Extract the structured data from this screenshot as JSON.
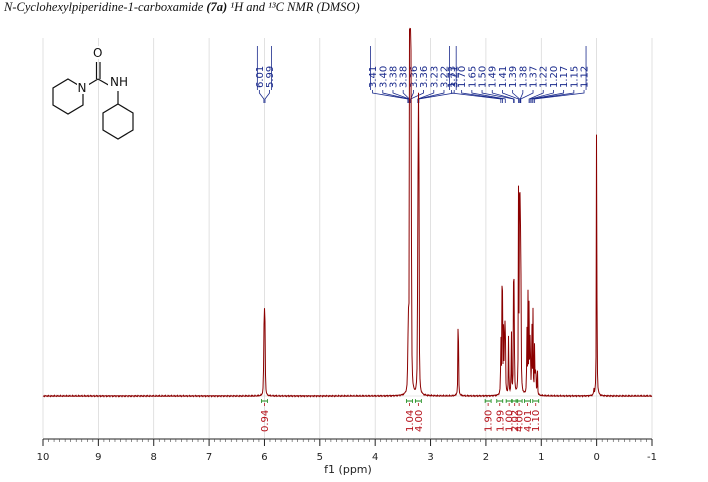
{
  "title": {
    "compound": "N-Cyclohexylpiperidine-1-carboxamide",
    "label": "(7a)",
    "nuclei": "¹H and ¹³C NMR (DMSO)"
  },
  "structure": {
    "atom_O": "O",
    "atom_N": "N",
    "atom_NH": "NH"
  },
  "chart_data": {
    "type": "line",
    "title": "N-Cyclohexylpiperidine-1-carboxamide (7a) ¹H and ¹³C NMR (DMSO)",
    "xlabel": "f1 (ppm)",
    "ylabel": "",
    "xlim": [
      10,
      -1
    ],
    "x_reversed": true,
    "grid": true,
    "x_ticks": [
      10,
      9,
      8,
      7,
      6,
      5,
      4,
      3,
      2,
      1,
      0,
      -1
    ],
    "x_tick_labels": [
      "10",
      "9",
      "8",
      "7",
      "6",
      "5",
      "4",
      "3",
      "2",
      "1",
      "0",
      "-1"
    ],
    "peak_groups": [
      {
        "labels": [
          "6.01",
          "5.99"
        ],
        "values": [
          6.01,
          5.99
        ]
      },
      {
        "labels": [
          "3.41",
          "3.40",
          "3.38",
          "3.38",
          "3.36",
          "3.36",
          "3.23",
          "3.22",
          "3.21"
        ],
        "values": [
          3.41,
          3.4,
          3.38,
          3.38,
          3.36,
          3.36,
          3.23,
          3.22,
          3.21
        ]
      },
      {
        "labels": [
          "1.73",
          "1.70",
          "1.65",
          "1.50",
          "1.49",
          "1.41",
          "1.39",
          "1.38",
          "1.37",
          "1.22",
          "1.20",
          "1.17",
          "1.15",
          "1.12"
        ],
        "values": [
          1.73,
          1.7,
          1.65,
          1.5,
          1.49,
          1.41,
          1.39,
          1.38,
          1.37,
          1.22,
          1.2,
          1.17,
          1.15,
          1.12
        ]
      }
    ],
    "integrals": [
      {
        "center": 6.0,
        "label": "0.94"
      },
      {
        "center": 3.38,
        "label": "1.04"
      },
      {
        "center": 3.22,
        "label": "4.00"
      },
      {
        "center": 1.96,
        "label": "1.90"
      },
      {
        "center": 1.75,
        "label": "1.99"
      },
      {
        "center": 1.58,
        "label": "1.00"
      },
      {
        "center": 1.48,
        "label": "2.02"
      },
      {
        "center": 1.4,
        "label": "4.00"
      },
      {
        "center": 1.25,
        "label": "4.01"
      },
      {
        "center": 1.1,
        "label": "1.10"
      }
    ],
    "peaks": [
      [
        6.02,
        0.02
      ],
      [
        6.01,
        0.18
      ],
      [
        6.0,
        0.2
      ],
      [
        5.99,
        0.17
      ],
      [
        5.98,
        0.02
      ],
      [
        3.41,
        0.12
      ],
      [
        3.4,
        0.18
      ],
      [
        3.38,
        1.0
      ],
      [
        3.37,
        1.0
      ],
      [
        3.36,
        1.0
      ],
      [
        3.35,
        1.0
      ],
      [
        3.23,
        0.58
      ],
      [
        3.22,
        0.9
      ],
      [
        3.21,
        0.58
      ],
      [
        2.5,
        0.38
      ],
      [
        1.73,
        0.2
      ],
      [
        1.71,
        0.26
      ],
      [
        1.7,
        0.24
      ],
      [
        1.68,
        0.22
      ],
      [
        1.66,
        0.27
      ],
      [
        1.65,
        0.24
      ],
      [
        1.59,
        0.2
      ],
      [
        1.54,
        0.22
      ],
      [
        1.5,
        0.32
      ],
      [
        1.49,
        0.35
      ],
      [
        1.41,
        0.6
      ],
      [
        1.39,
        0.78
      ],
      [
        1.38,
        0.55
      ],
      [
        1.37,
        0.5
      ],
      [
        1.26,
        0.22
      ],
      [
        1.24,
        0.27
      ],
      [
        1.22,
        0.28
      ],
      [
        1.2,
        0.26
      ],
      [
        1.17,
        0.25
      ],
      [
        1.15,
        0.23
      ],
      [
        1.12,
        0.18
      ],
      [
        1.1,
        0.12
      ],
      [
        1.07,
        0.08
      ],
      [
        0.05,
        0.02
      ],
      [
        0.0,
        1.0
      ]
    ]
  }
}
